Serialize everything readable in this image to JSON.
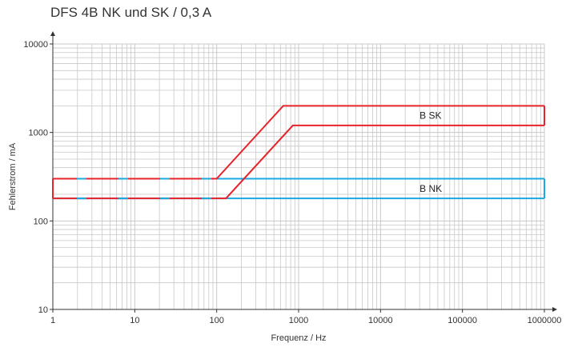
{
  "chart_data": {
    "type": "line",
    "title": "DFS 4B NK und SK / 0,3 A",
    "xlabel": "Frequenz / Hz",
    "ylabel": "Fehlerstrom / mA",
    "xscale": "log",
    "yscale": "log",
    "xlim": [
      1,
      1000000
    ],
    "ylim": [
      10,
      10000
    ],
    "x_ticks": [
      "1",
      "10",
      "100",
      "1000",
      "10000",
      "100000",
      "1000000"
    ],
    "y_ticks": [
      "10",
      "100",
      "1000",
      "10000"
    ],
    "grid": true,
    "colors": {
      "sk": "#e8242b",
      "nk": "#1aa9e2",
      "grid": "#c8c8c8",
      "axis": "#333333"
    },
    "series": [
      {
        "name": "B SK",
        "color": "#e8242b",
        "upper": {
          "x": [
            1,
            100,
            650,
            1000000
          ],
          "y": [
            300,
            300,
            2000,
            2000
          ]
        },
        "lower": {
          "x": [
            1,
            130,
            850,
            1000000
          ],
          "y": [
            180,
            180,
            1200,
            1200
          ]
        }
      },
      {
        "name": "B NK",
        "color": "#1aa9e2",
        "upper": {
          "x": [
            1,
            1000000
          ],
          "y": [
            300,
            300
          ]
        },
        "lower": {
          "x": [
            1,
            1000000
          ],
          "y": [
            180,
            180
          ]
        }
      }
    ]
  }
}
